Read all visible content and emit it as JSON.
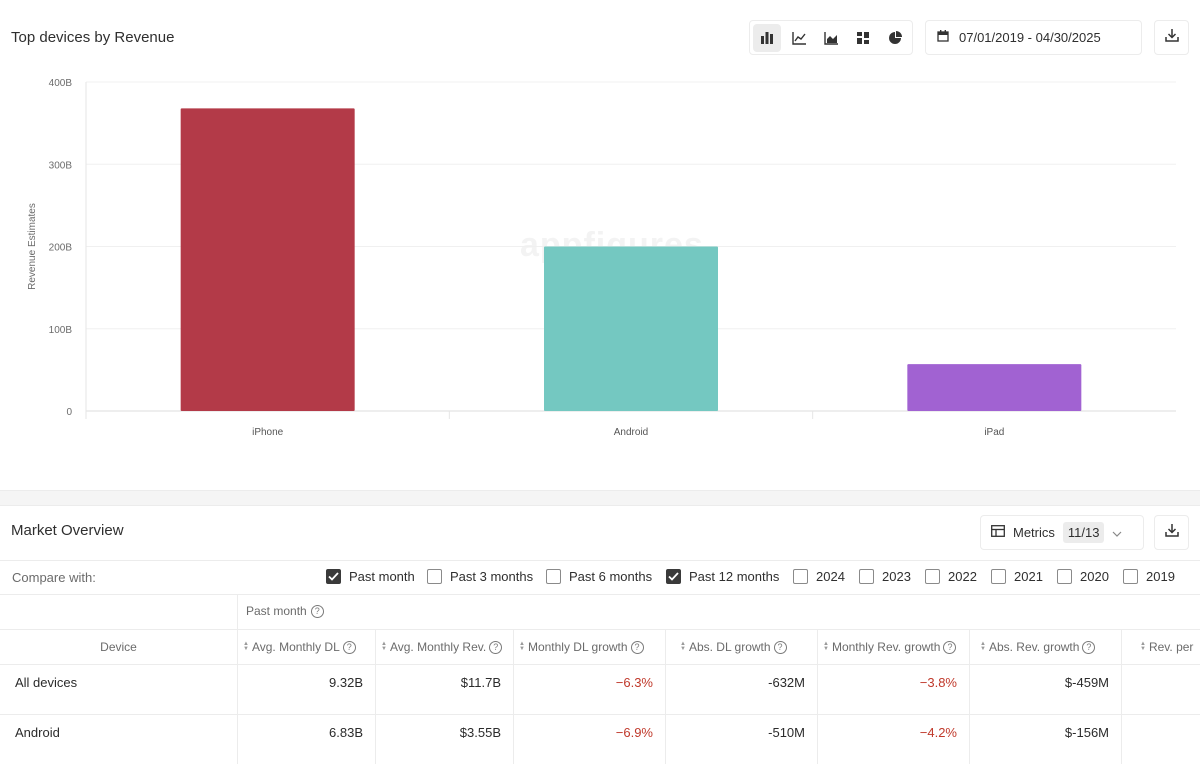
{
  "chart_panel": {
    "title": "Top devices by Revenue",
    "chart_type_icons": [
      "bar-chart-icon",
      "line-chart-icon",
      "area-chart-icon",
      "grid-chart-icon",
      "pie-chart-icon"
    ],
    "date_range": "07/01/2019 - 04/30/2025",
    "watermark": "appfigures"
  },
  "chart_data": {
    "type": "bar",
    "categories": [
      "iPhone",
      "Android",
      "iPad"
    ],
    "values": [
      368000000000,
      200000000000,
      57000000000
    ],
    "colors": [
      "#b33a48",
      "#74c8c1",
      "#a162d2"
    ],
    "ylabel": "Revenue Estimates",
    "ylim": [
      0,
      400000000000
    ],
    "yticks": [
      "0",
      "100B",
      "200B",
      "300B",
      "400B"
    ],
    "grid": true
  },
  "market_overview": {
    "title": "Market Overview",
    "metrics_label": "Metrics",
    "metrics_count": "11/13",
    "compare_label": "Compare with:",
    "compare_options": [
      {
        "label": "Past month",
        "checked": true
      },
      {
        "label": "Past 3 months",
        "checked": false
      },
      {
        "label": "Past 6 months",
        "checked": false
      },
      {
        "label": "Past 12 months",
        "checked": true
      },
      {
        "label": "2024",
        "checked": false
      },
      {
        "label": "2023",
        "checked": false
      },
      {
        "label": "2022",
        "checked": false
      },
      {
        "label": "2021",
        "checked": false
      },
      {
        "label": "2020",
        "checked": false
      },
      {
        "label": "2019",
        "checked": false
      }
    ],
    "period_label": "Past month",
    "columns": [
      "Device",
      "Avg. Monthly DL",
      "Avg. Monthly Rev.",
      "Monthly DL growth",
      "Abs. DL growth",
      "Monthly Rev. growth",
      "Abs. Rev. growth",
      "Rev. per"
    ],
    "rows": [
      {
        "device": "All devices",
        "avg_dl": "9.32B",
        "avg_rev": "$11.7B",
        "dl_growth": "−6.3%",
        "abs_dl": "-632M",
        "rev_growth": "−3.8%",
        "abs_rev": "$-459M"
      },
      {
        "device": "Android",
        "avg_dl": "6.83B",
        "avg_rev": "$3.55B",
        "dl_growth": "−6.9%",
        "abs_dl": "-510M",
        "rev_growth": "−4.2%",
        "abs_rev": "$-156M"
      }
    ]
  }
}
